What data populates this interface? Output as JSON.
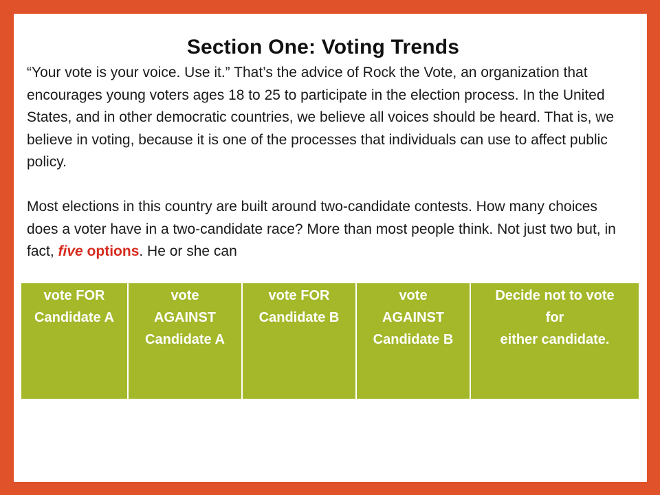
{
  "slide": {
    "title": "Section One: Voting Trends",
    "paragraph1": "“Your vote is your voice. Use it.” That’s the advice of Rock the Vote, an organization that encourages young voters ages 18 to 25 to participate in the election process. In the United States, and in other democratic countries, we believe all voices should be heard. That is, we believe in voting, because it is one of the processes that individuals can use to affect public policy.",
    "paragraph2_before": "Most elections in this country are built around two-candidate contests. How many choices does a voter have in a two-candidate race? More than most people think. Not just two but, in fact, ",
    "paragraph2_emph_word": "five",
    "paragraph2_emph_rest": " options",
    "paragraph2_after": ". He or she can",
    "emphasis_color": "#d62b1f"
  },
  "options": [
    {
      "lines": [
        "vote FOR",
        "Candidate A"
      ]
    },
    {
      "lines": [
        "vote",
        "AGAINST",
        "Candidate A"
      ]
    },
    {
      "lines": [
        "vote FOR",
        "Candidate B"
      ]
    },
    {
      "lines": [
        "vote",
        "AGAINST",
        "Candidate B"
      ]
    },
    {
      "lines": [
        "Decide not to vote",
        "for",
        "either candidate."
      ]
    }
  ],
  "colors": {
    "frame": "#e0522a",
    "table_fill": "#a4b82a",
    "table_text": "#ffffff"
  }
}
